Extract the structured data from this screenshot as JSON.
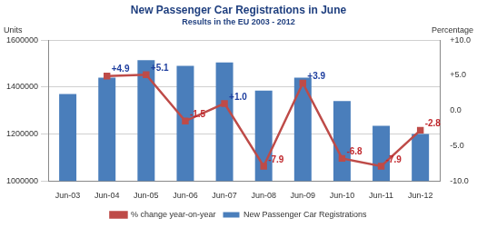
{
  "chart_data": {
    "type": "bar",
    "title": "New Passenger Car Registrations in June",
    "subtitle": "Results in the EU 2003 - 2012",
    "ylabel": "Units",
    "y2label": "Percentage",
    "categories": [
      "Jun-03",
      "Jun-04",
      "Jun-05",
      "Jun-06",
      "Jun-07",
      "Jun-08",
      "Jun-09",
      "Jun-10",
      "Jun-11",
      "Jun-12"
    ],
    "series": [
      {
        "name": "New Passenger Car Registrations",
        "type": "bar",
        "color": "#4a7ebb",
        "values": [
          1370000,
          1440000,
          1515000,
          1490000,
          1505000,
          1385000,
          1440000,
          1340000,
          1235000,
          1200000
        ]
      },
      {
        "name": "% change year-on-year",
        "type": "line",
        "color": "#be4b48",
        "marker": "square",
        "axis": "y2",
        "data_labels": true,
        "values": [
          null,
          4.9,
          5.1,
          -1.5,
          1.0,
          -7.9,
          3.9,
          -6.8,
          -7.9,
          -2.8
        ],
        "value_labels": [
          null,
          "+4.9",
          "+5.1",
          "-1.5",
          "+1.0",
          "-7.9",
          "+3.9",
          "-6.8",
          "-7.9",
          "-2.8"
        ]
      }
    ],
    "ylim": [
      1000000,
      1600000
    ],
    "yticks": [
      1000000,
      1200000,
      1400000,
      1600000
    ],
    "y2lim": [
      -10,
      10
    ],
    "y2ticks": [
      {
        "value": -10,
        "label": "-10.0"
      },
      {
        "value": -5,
        "label": "-5.0"
      },
      {
        "value": 0,
        "label": "0.0"
      },
      {
        "value": 5,
        "label": "+5.0"
      },
      {
        "value": 10,
        "label": "+10.0"
      }
    ],
    "grid": true,
    "legend": "bottom"
  }
}
